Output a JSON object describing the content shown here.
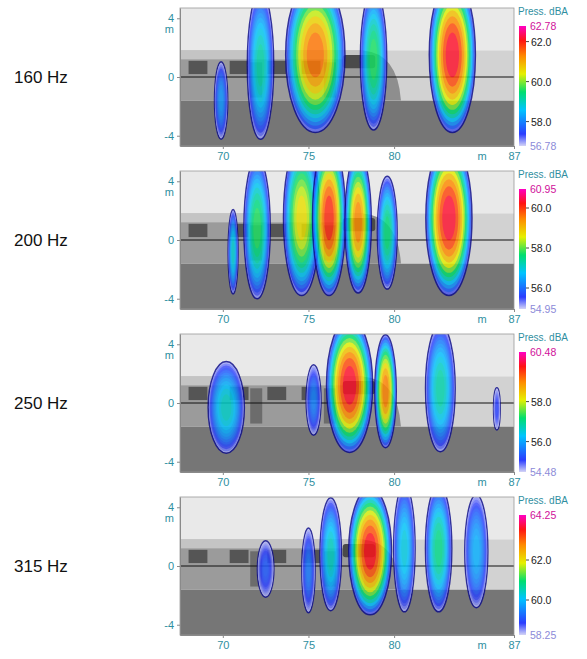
{
  "chart_data": [
    {
      "type": "heatmap",
      "title": "160 Hz",
      "xlabel": "m",
      "ylabel": "m",
      "xlim": [
        67.5,
        87
      ],
      "xticks": [
        70,
        75,
        80,
        87
      ],
      "ylim": [
        -4.7,
        4.7
      ],
      "yticks": [
        4,
        0,
        -4
      ],
      "sources": [
        {
          "x": 69.9,
          "y": -1.6,
          "width": 0.8,
          "height": 5.5,
          "level": 58.3
        },
        {
          "x": 72.2,
          "y": 0.8,
          "width": 1.6,
          "height": 10.5,
          "level": 59.3
        },
        {
          "x": 75.4,
          "y": 1.5,
          "width": 3.6,
          "height": 11,
          "level": 61.8
        },
        {
          "x": 78.8,
          "y": 1.2,
          "width": 1.6,
          "height": 10,
          "level": 59.8
        },
        {
          "x": 83.4,
          "y": 1.5,
          "width": 2.8,
          "height": 11,
          "level": 62.6
        }
      ],
      "colorbar": {
        "title": "Press. dBA",
        "range": [
          56.78,
          62.78
        ],
        "ticks": [
          {
            "value": 62,
            "label": "62.0"
          },
          {
            "value": 60,
            "label": "60.0"
          },
          {
            "value": 58,
            "label": "58.0"
          }
        ]
      }
    },
    {
      "type": "heatmap",
      "title": "200 Hz",
      "xlabel": "m",
      "ylabel": "m",
      "xlim": [
        67.5,
        87
      ],
      "xticks": [
        70,
        75,
        80,
        87
      ],
      "ylim": [
        -4.7,
        4.7
      ],
      "yticks": [
        4,
        0,
        -4
      ],
      "sources": [
        {
          "x": 70.6,
          "y": -0.8,
          "width": 0.6,
          "height": 6,
          "level": 57.2
        },
        {
          "x": 72.0,
          "y": 0.8,
          "width": 1.6,
          "height": 10,
          "level": 58.0
        },
        {
          "x": 74.6,
          "y": 1.5,
          "width": 2.2,
          "height": 11,
          "level": 59.0
        },
        {
          "x": 76.2,
          "y": 1.5,
          "width": 2.0,
          "height": 11,
          "level": 60.5
        },
        {
          "x": 77.9,
          "y": 1.2,
          "width": 1.6,
          "height": 10,
          "level": 59.8
        },
        {
          "x": 79.6,
          "y": 0.5,
          "width": 1.2,
          "height": 8,
          "level": 57.8
        },
        {
          "x": 83.2,
          "y": 1.5,
          "width": 2.8,
          "height": 11,
          "level": 60.8
        }
      ],
      "colorbar": {
        "title": "Press. dBA",
        "range": [
          54.95,
          60.95
        ],
        "ticks": [
          {
            "value": 60,
            "label": "60.0"
          },
          {
            "value": 58,
            "label": "58.0"
          },
          {
            "value": 56,
            "label": "56.0"
          }
        ]
      }
    },
    {
      "type": "heatmap",
      "title": "250 Hz",
      "xlabel": "m",
      "ylabel": "m",
      "xlim": [
        67.5,
        87
      ],
      "xticks": [
        70,
        75,
        80,
        87
      ],
      "ylim": [
        -4.7,
        4.7
      ],
      "yticks": [
        4,
        0,
        -4
      ],
      "sources": [
        {
          "x": 70.2,
          "y": -0.3,
          "width": 2.2,
          "height": 6.5,
          "level": 56.8
        },
        {
          "x": 75.3,
          "y": 0.2,
          "width": 0.9,
          "height": 5,
          "level": 55.8
        },
        {
          "x": 77.4,
          "y": 1.2,
          "width": 2.8,
          "height": 9.5,
          "level": 60.3
        },
        {
          "x": 79.5,
          "y": 0.8,
          "width": 1.3,
          "height": 8,
          "level": 59.4
        },
        {
          "x": 82.7,
          "y": 1.0,
          "width": 1.8,
          "height": 9,
          "level": 57.0
        },
        {
          "x": 86.0,
          "y": -0.4,
          "width": 0.4,
          "height": 3,
          "level": 55.2
        }
      ],
      "colorbar": {
        "title": "Press. dBA",
        "range": [
          54.48,
          60.48
        ],
        "ticks": [
          {
            "value": 58,
            "label": "58.0"
          },
          {
            "value": 56,
            "label": "56.0"
          }
        ]
      }
    },
    {
      "type": "heatmap",
      "title": "315 Hz",
      "xlabel": "m",
      "ylabel": "m",
      "xlim": [
        67.5,
        87
      ],
      "xticks": [
        70,
        75,
        80,
        87
      ],
      "ylim": [
        -4.7,
        4.7
      ],
      "yticks": [
        4,
        0,
        -4
      ],
      "sources": [
        {
          "x": 72.5,
          "y": -0.2,
          "width": 1.0,
          "height": 4,
          "level": 59.2
        },
        {
          "x": 75.0,
          "y": -0.3,
          "width": 0.8,
          "height": 6,
          "level": 59.5
        },
        {
          "x": 76.3,
          "y": 0.8,
          "width": 1.3,
          "height": 8,
          "level": 60.6
        },
        {
          "x": 78.6,
          "y": 1.0,
          "width": 2.6,
          "height": 9,
          "level": 64.0
        },
        {
          "x": 80.6,
          "y": 1.2,
          "width": 1.3,
          "height": 9,
          "level": 60.4
        },
        {
          "x": 82.6,
          "y": 1.2,
          "width": 1.6,
          "height": 9,
          "level": 61.0
        },
        {
          "x": 84.8,
          "y": 1.0,
          "width": 1.4,
          "height": 8,
          "level": 60.0
        }
      ],
      "colorbar": {
        "title": "Press. dBA",
        "range": [
          58.25,
          64.25
        ],
        "ticks": [
          {
            "value": 62,
            "label": "62.0"
          },
          {
            "value": 60,
            "label": "60.0"
          }
        ]
      }
    }
  ]
}
